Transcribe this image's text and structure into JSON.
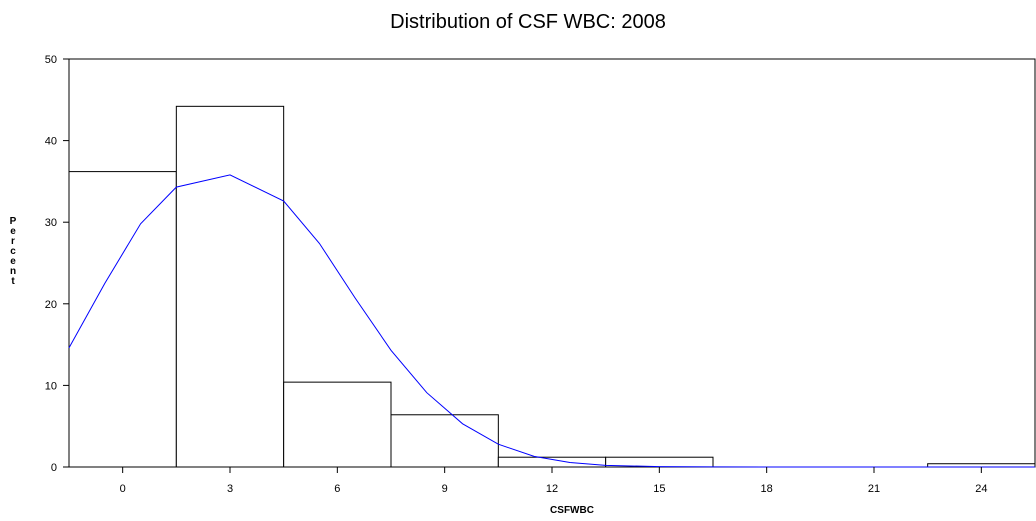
{
  "chart_data": {
    "type": "bar",
    "title": "Distribution of CSF WBC:  2008",
    "xlabel": "CSFWBC",
    "ylabel": "Percent",
    "bin_width": 3,
    "bins": [
      {
        "center": 0,
        "value": 36.2
      },
      {
        "center": 3,
        "value": 44.2
      },
      {
        "center": 6,
        "value": 10.4
      },
      {
        "center": 9,
        "value": 6.4
      },
      {
        "center": 12,
        "value": 1.2
      },
      {
        "center": 15,
        "value": 1.2
      },
      {
        "center": 18,
        "value": 0
      },
      {
        "center": 21,
        "value": 0
      },
      {
        "center": 24,
        "value": 0.4
      }
    ],
    "xticks": [
      0,
      3,
      6,
      9,
      12,
      15,
      18,
      21,
      24
    ],
    "yticks": [
      0,
      10,
      20,
      30,
      40,
      50
    ],
    "xlim": [
      -1.5,
      25.5
    ],
    "ylim": [
      0,
      50
    ],
    "curve": {
      "type": "normal",
      "color": "#0000ff",
      "points": [
        [
          -1.5,
          14.6
        ],
        [
          -0.5,
          22.5
        ],
        [
          0.5,
          29.8
        ],
        [
          1.5,
          34.3
        ],
        [
          3.0,
          35.8
        ],
        [
          4.5,
          32.6
        ],
        [
          5.5,
          27.4
        ],
        [
          6.5,
          20.7
        ],
        [
          7.5,
          14.3
        ],
        [
          8.5,
          9.1
        ],
        [
          9.5,
          5.3
        ],
        [
          10.5,
          2.8
        ],
        [
          11.5,
          1.3
        ],
        [
          12.5,
          0.55
        ],
        [
          13.5,
          0.2
        ],
        [
          15.0,
          0.05
        ],
        [
          16.5,
          0.01
        ],
        [
          18.0,
          0.0
        ],
        [
          25.5,
          0.0
        ]
      ]
    },
    "grid": false,
    "legend": "none",
    "bar_fill": "#ffffff",
    "bar_stroke": "#000000"
  }
}
